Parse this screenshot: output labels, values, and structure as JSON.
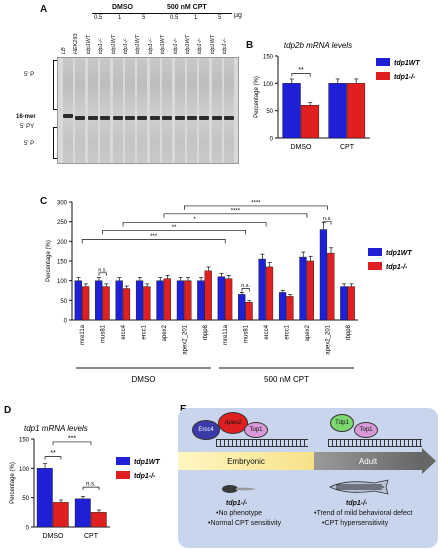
{
  "panels": {
    "a": "A",
    "b": "B",
    "c": "C",
    "d": "D",
    "e": "E"
  },
  "panelA": {
    "conditions": [
      "DMSO",
      "500 nM CPT"
    ],
    "unit": "µg",
    "amounts": [
      "0.5",
      "1",
      "5",
      "0.5",
      "1",
      "5"
    ],
    "lanes": [
      "LB",
      "HEK293",
      "tdp1WT",
      "tdp1-/-",
      "tdp1WT",
      "tdp1-/-",
      "tdp1WT",
      "tdp1-/-",
      "tdp1WT",
      "tdp1-/-",
      "tdp1WT",
      "tdp1-/-",
      "tdp1WT",
      "tdp1-/-"
    ],
    "markers": [
      "5' P",
      "16-mer",
      "5' PY",
      "5' P"
    ]
  },
  "legend": {
    "wt": "tdp1WT",
    "ko": "tdp1-/-"
  },
  "colors": {
    "wt": "#1f1fd8",
    "ko": "#e02020"
  },
  "chart_data": [
    {
      "type": "bar",
      "title": "tdp2b mRNA levels",
      "ylabel": "Percentage (%)",
      "categories": [
        "DMSO",
        "CPT"
      ],
      "series": [
        {
          "name": "tdp1WT",
          "values": [
            100,
            100
          ]
        },
        {
          "name": "tdp1-/-",
          "values": [
            60,
            100
          ]
        }
      ],
      "ylim": [
        0,
        150
      ],
      "yticks": [
        0,
        50,
        100,
        150
      ],
      "annotations": [
        "**"
      ]
    },
    {
      "type": "bar",
      "ylabel": "Percentage (%)",
      "categories": [
        "mre11a",
        "mus81",
        "ercc4",
        "ercc1",
        "apex2",
        "apex2_201",
        "rbpp8",
        "mre11a",
        "mus81",
        "ercc4",
        "ercc1",
        "apex2",
        "apex2_201",
        "rbpp8"
      ],
      "groups": [
        "DMSO",
        "500 nM CPT"
      ],
      "series": [
        {
          "name": "tdp1WT",
          "values": [
            100,
            100,
            100,
            100,
            100,
            100,
            100,
            110,
            65,
            155,
            70,
            160,
            230,
            85
          ]
        },
        {
          "name": "tdp1-/-",
          "values": [
            85,
            85,
            80,
            85,
            105,
            100,
            125,
            105,
            45,
            135,
            60,
            150,
            170,
            85
          ]
        }
      ],
      "ylim": [
        0,
        300
      ],
      "yticks": [
        0,
        50,
        100,
        150,
        200,
        250,
        300
      ],
      "annotations": [
        "****",
        "****",
        "*",
        "**",
        "***",
        "n.s.",
        "n.s.",
        "n.s."
      ]
    },
    {
      "type": "bar",
      "title": "tdp1 mRNA levels",
      "ylabel": "Percentage (%)",
      "categories": [
        "DMSO",
        "CPT"
      ],
      "series": [
        {
          "name": "tdp1WT",
          "values": [
            100,
            48
          ]
        },
        {
          "name": "tdp1-/-",
          "values": [
            42,
            25
          ]
        }
      ],
      "ylim": [
        0,
        150
      ],
      "yticks": [
        0,
        50,
        100,
        150
      ],
      "annotations": [
        "***",
        "**",
        "n.s."
      ]
    }
  ],
  "panelE": {
    "proteins": [
      "Ercc4",
      "Apex2",
      "Top1",
      "Tdp1",
      "Top1"
    ],
    "stages": [
      "Embryonic",
      "Adult"
    ],
    "left_title": "tdp1-/-",
    "left_notes": [
      "•No phenotype",
      "•Normal CPT sensitivity"
    ],
    "right_title": "tdp1-/-",
    "right_notes": [
      "•Trend of mild behavioral defect",
      "•CPT hypersensitivity"
    ]
  }
}
